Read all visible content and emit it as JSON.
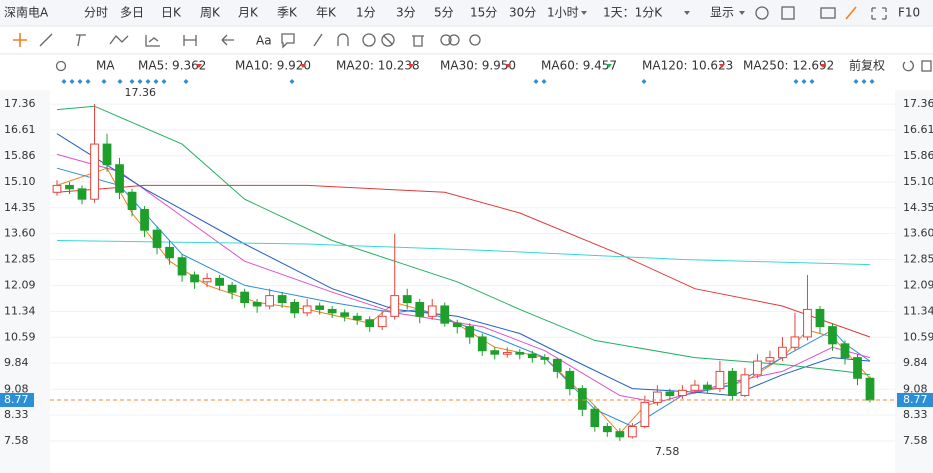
{
  "toolbar": {
    "stock_name": "深南电A",
    "periods": [
      "分时",
      "多日",
      "日K",
      "周K",
      "月K",
      "季K",
      "年K",
      "1分",
      "3分",
      "5分",
      "15分",
      "30分",
      "1小时"
    ],
    "active_period": 2,
    "range": "1天：1分K",
    "display": "显示",
    "f10": "F10",
    "font_button": "Aa"
  },
  "chart_data": {
    "type": "candlestick",
    "indicator": "MA",
    "adjust": "前复权",
    "ylim": [
      6.65,
      17.77
    ],
    "yticks": [
      17.36,
      16.61,
      15.86,
      {
        "value": 15.1,
        "label": "15.10"
      },
      14.35,
      {
        "value": 13.6,
        "label": "13.60"
      },
      12.85,
      12.09,
      11.34,
      10.59,
      9.84,
      9.08,
      8.33,
      7.58
    ],
    "grid": true,
    "up_color": "#e8433b",
    "down_color": "#1e9e2a",
    "last_price": 8.77,
    "last_price_color": "#f0883a",
    "ohlc": [
      [
        14.8,
        15.15,
        14.7,
        15.0
      ],
      [
        15.0,
        15.1,
        14.75,
        14.9
      ],
      [
        14.9,
        15.0,
        14.45,
        14.6
      ],
      [
        14.6,
        17.36,
        14.5,
        16.2
      ],
      [
        16.2,
        16.5,
        15.4,
        15.6
      ],
      [
        15.6,
        15.8,
        14.6,
        14.8
      ],
      [
        14.8,
        14.9,
        14.1,
        14.3
      ],
      [
        14.3,
        14.4,
        13.5,
        13.7
      ],
      [
        13.7,
        13.8,
        13.0,
        13.2
      ],
      [
        13.2,
        13.4,
        12.7,
        12.9
      ],
      [
        12.9,
        13.0,
        12.2,
        12.4
      ],
      [
        12.4,
        12.5,
        12.0,
        12.2
      ],
      [
        12.2,
        12.45,
        12.05,
        12.3
      ],
      [
        12.3,
        12.4,
        11.95,
        12.1
      ],
      [
        12.1,
        12.2,
        11.7,
        11.9
      ],
      [
        11.9,
        12.0,
        11.45,
        11.6
      ],
      [
        11.6,
        11.7,
        11.3,
        11.5
      ],
      [
        11.5,
        12.0,
        11.4,
        11.8
      ],
      [
        11.8,
        11.9,
        11.45,
        11.6
      ],
      [
        11.6,
        11.7,
        11.15,
        11.3
      ],
      [
        11.3,
        11.7,
        11.2,
        11.5
      ],
      [
        11.5,
        11.6,
        11.25,
        11.4
      ],
      [
        11.4,
        11.5,
        11.15,
        11.3
      ],
      [
        11.3,
        11.4,
        11.05,
        11.2
      ],
      [
        11.2,
        11.3,
        10.95,
        11.1
      ],
      [
        11.1,
        11.2,
        10.75,
        10.9
      ],
      [
        10.9,
        11.35,
        10.8,
        11.2
      ],
      [
        11.2,
        13.6,
        11.1,
        11.8
      ],
      [
        11.8,
        12.0,
        11.4,
        11.6
      ],
      [
        11.6,
        11.7,
        11.0,
        11.2
      ],
      [
        11.2,
        11.7,
        11.1,
        11.5
      ],
      [
        11.5,
        11.6,
        10.9,
        11.0
      ],
      [
        11.0,
        11.1,
        10.7,
        10.9
      ],
      [
        10.9,
        11.0,
        10.4,
        10.6
      ],
      [
        10.6,
        10.7,
        10.05,
        10.2
      ],
      [
        10.2,
        10.3,
        9.95,
        10.1
      ],
      [
        10.1,
        10.3,
        10.0,
        10.15
      ],
      [
        10.15,
        10.25,
        9.95,
        10.1
      ],
      [
        10.1,
        10.2,
        9.85,
        10.0
      ],
      [
        10.0,
        10.1,
        9.8,
        9.95
      ],
      [
        9.95,
        10.0,
        9.4,
        9.6
      ],
      [
        9.6,
        9.7,
        8.9,
        9.1
      ],
      [
        9.1,
        9.2,
        8.3,
        8.5
      ],
      [
        8.5,
        8.6,
        7.85,
        8.0
      ],
      [
        8.0,
        8.1,
        7.7,
        7.85
      ],
      [
        7.85,
        7.95,
        7.58,
        7.7
      ],
      [
        7.7,
        8.1,
        7.65,
        8.0
      ],
      [
        8.0,
        8.9,
        7.95,
        8.7
      ],
      [
        8.7,
        9.2,
        8.6,
        9.0
      ],
      [
        9.0,
        9.1,
        8.75,
        8.9
      ],
      [
        8.9,
        9.2,
        8.8,
        9.05
      ],
      [
        9.05,
        9.35,
        8.95,
        9.2
      ],
      [
        9.2,
        9.3,
        8.95,
        9.1
      ],
      [
        9.1,
        9.9,
        9.0,
        9.6
      ],
      [
        9.6,
        9.7,
        8.75,
        8.9
      ],
      [
        8.9,
        9.7,
        8.85,
        9.5
      ],
      [
        9.5,
        10.1,
        9.4,
        9.9
      ],
      [
        9.9,
        10.2,
        9.8,
        10.0
      ],
      [
        10.0,
        10.6,
        9.9,
        10.3
      ],
      [
        10.3,
        11.3,
        10.2,
        10.6
      ],
      [
        10.6,
        12.4,
        10.5,
        11.4
      ],
      [
        11.4,
        11.5,
        10.7,
        10.9
      ],
      [
        10.9,
        11.0,
        10.2,
        10.4
      ],
      [
        10.4,
        10.5,
        9.8,
        10.0
      ],
      [
        10.0,
        10.1,
        9.2,
        9.4
      ],
      [
        9.4,
        9.45,
        8.7,
        8.77
      ]
    ],
    "series": [
      {
        "name": "MA5: 9.362",
        "color": "#f08020",
        "x": [
          0,
          4,
          6,
          9,
          12,
          16,
          20,
          25,
          27,
          31,
          35,
          39,
          43,
          45,
          47,
          51,
          55,
          58,
          60,
          62,
          65
        ],
        "values": [
          15.0,
          15.5,
          14.2,
          12.8,
          12.1,
          11.6,
          11.4,
          11.0,
          11.6,
          11.2,
          10.3,
          10.0,
          8.6,
          7.8,
          8.6,
          9.0,
          9.3,
          10.0,
          10.8,
          10.6,
          9.4
        ]
      },
      {
        "name": "MA10: 9.920",
        "color": "#2a8fd6",
        "x": [
          0,
          5,
          10,
          15,
          22,
          27,
          29,
          35,
          39,
          43,
          46,
          50,
          54,
          58,
          62,
          63,
          65
        ],
        "values": [
          15.5,
          15.0,
          13.0,
          12.1,
          11.6,
          11.3,
          11.4,
          10.6,
          10.0,
          8.5,
          8.0,
          8.9,
          9.2,
          10.0,
          10.8,
          10.4,
          9.9
        ]
      },
      {
        "name": "MA20: 10.238",
        "color": "#e050c8",
        "x": [
          0,
          5,
          10,
          15,
          22,
          27,
          34,
          39,
          45,
          48,
          54,
          58,
          62,
          65
        ],
        "values": [
          15.9,
          15.4,
          14.1,
          12.8,
          11.9,
          11.3,
          10.9,
          10.2,
          8.9,
          8.7,
          9.3,
          9.6,
          10.3,
          10.0
        ]
      },
      {
        "name": "MA30: 9.950",
        "color": "#2060c0",
        "x": [
          0,
          7,
          15,
          22,
          27,
          32,
          37,
          42,
          46,
          51,
          54,
          58,
          62,
          65
        ],
        "values": [
          16.5,
          14.9,
          13.3,
          12.0,
          11.4,
          11.2,
          10.7,
          9.8,
          9.1,
          9.0,
          8.9,
          9.5,
          10.0,
          9.9
        ]
      },
      {
        "name": "MA60: 9.457",
        "color": "#22b060",
        "x": [
          0,
          3,
          10,
          15,
          22,
          27,
          32,
          37,
          43,
          51,
          58,
          63,
          65
        ],
        "values": [
          17.2,
          17.3,
          16.2,
          14.6,
          13.4,
          12.8,
          12.2,
          11.4,
          10.5,
          10.0,
          9.8,
          9.6,
          9.5
        ]
      },
      {
        "name": "MA120: 10.623",
        "color": "#e03a3a",
        "x": [
          0,
          7,
          20,
          31,
          37,
          45,
          51,
          58,
          65
        ],
        "values": [
          14.8,
          15.0,
          15.0,
          14.8,
          14.2,
          13.0,
          12.0,
          11.5,
          10.6
        ]
      },
      {
        "name": "MA250: 12.692",
        "color": "#3ad6d6",
        "x": [
          0,
          20,
          35,
          50,
          65
        ],
        "values": [
          13.4,
          13.3,
          13.1,
          12.85,
          12.7
        ]
      }
    ]
  }
}
